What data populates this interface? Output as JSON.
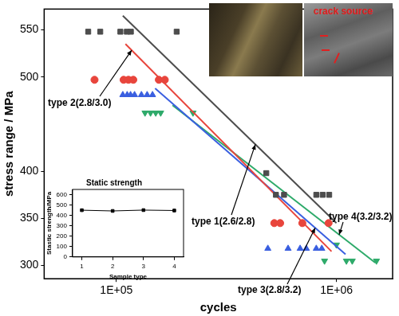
{
  "chart_data": [
    {
      "type": "scatter",
      "x_label": "cycles",
      "y_label": "stress range / MPa",
      "log": "x",
      "grid": false,
      "xlim": [
        47000,
        1800000
      ],
      "xticks": [
        {
          "value": 100000,
          "label": "1E+05"
        },
        {
          "value": 1000000,
          "label": "1E+06"
        }
      ],
      "ylim": [
        286,
        572
      ],
      "yticks": [
        300,
        350,
        400,
        500,
        550
      ],
      "annotations": [
        "crack source"
      ],
      "series": [
        {
          "name": "type 1(2.6/2.8)",
          "color": "#4d4d4d",
          "marker": "square",
          "x": [
            74500,
            84500,
            104300,
            111600,
            116400,
            188000,
            480000,
            531000,
            578000,
            810000,
            866000,
            927000
          ],
          "values": [
            548,
            548,
            548,
            548,
            548,
            548,
            398,
            375,
            375,
            375,
            375,
            375
          ],
          "fit": {
            "x": [
              107000,
              1000000
            ],
            "values": [
              565,
              345
            ]
          }
        },
        {
          "name": "type 2(2.8/3.0)",
          "color": "#e8453c",
          "marker": "circle",
          "x": [
            79600,
            107900,
            113500,
            119400,
            156000,
            166000,
            522000,
            555000,
            700000,
            921000
          ],
          "values": [
            497,
            497,
            497,
            497,
            497,
            497,
            345,
            345,
            345,
            345
          ],
          "fit": {
            "x": [
              110000,
              950000
            ],
            "values": [
              535,
              315
            ]
          }
        },
        {
          "name": "type 3(2.8/3.2)",
          "color": "#3a5fe0",
          "marker": "triangle",
          "x": [
            107000,
            112000,
            116000,
            121000,
            130000,
            138000,
            146000,
            488000,
            603000,
            684000,
            730000,
            810000,
            858000
          ],
          "values": [
            481,
            481,
            481,
            481,
            481,
            481,
            481,
            318,
            318,
            318,
            318,
            318,
            318
          ],
          "fit": {
            "x": [
              150000,
              1100000
            ],
            "values": [
              488,
              312
            ]
          }
        },
        {
          "name": "type 4(3.2/3.2)",
          "color": "#2eaa6a",
          "marker": "triangle_down",
          "x": [
            135000,
            143000,
            151000,
            159000,
            223000,
            883000,
            1000000,
            1110000,
            1180000,
            1520000
          ],
          "values": [
            462,
            462,
            462,
            462,
            462,
            305,
            322,
            305,
            305,
            305
          ],
          "fit": {
            "x": [
              180000,
              1500000
            ],
            "values": [
              470,
              303
            ]
          }
        }
      ]
    },
    {
      "type": "line",
      "title": "Static strength",
      "x_label": "Sample type",
      "y_label": "Stastic strength/MPa",
      "x": [
        1,
        2,
        3,
        4
      ],
      "values": [
        450,
        443,
        451,
        447
      ],
      "color": "#000000",
      "marker": "square",
      "grid": false,
      "xlim": [
        0.7,
        4.3
      ],
      "xticks": [
        1,
        2,
        3,
        4
      ],
      "ylim": [
        0,
        650
      ],
      "yticks": [
        0,
        100,
        200,
        300,
        400,
        500,
        600
      ]
    }
  ]
}
